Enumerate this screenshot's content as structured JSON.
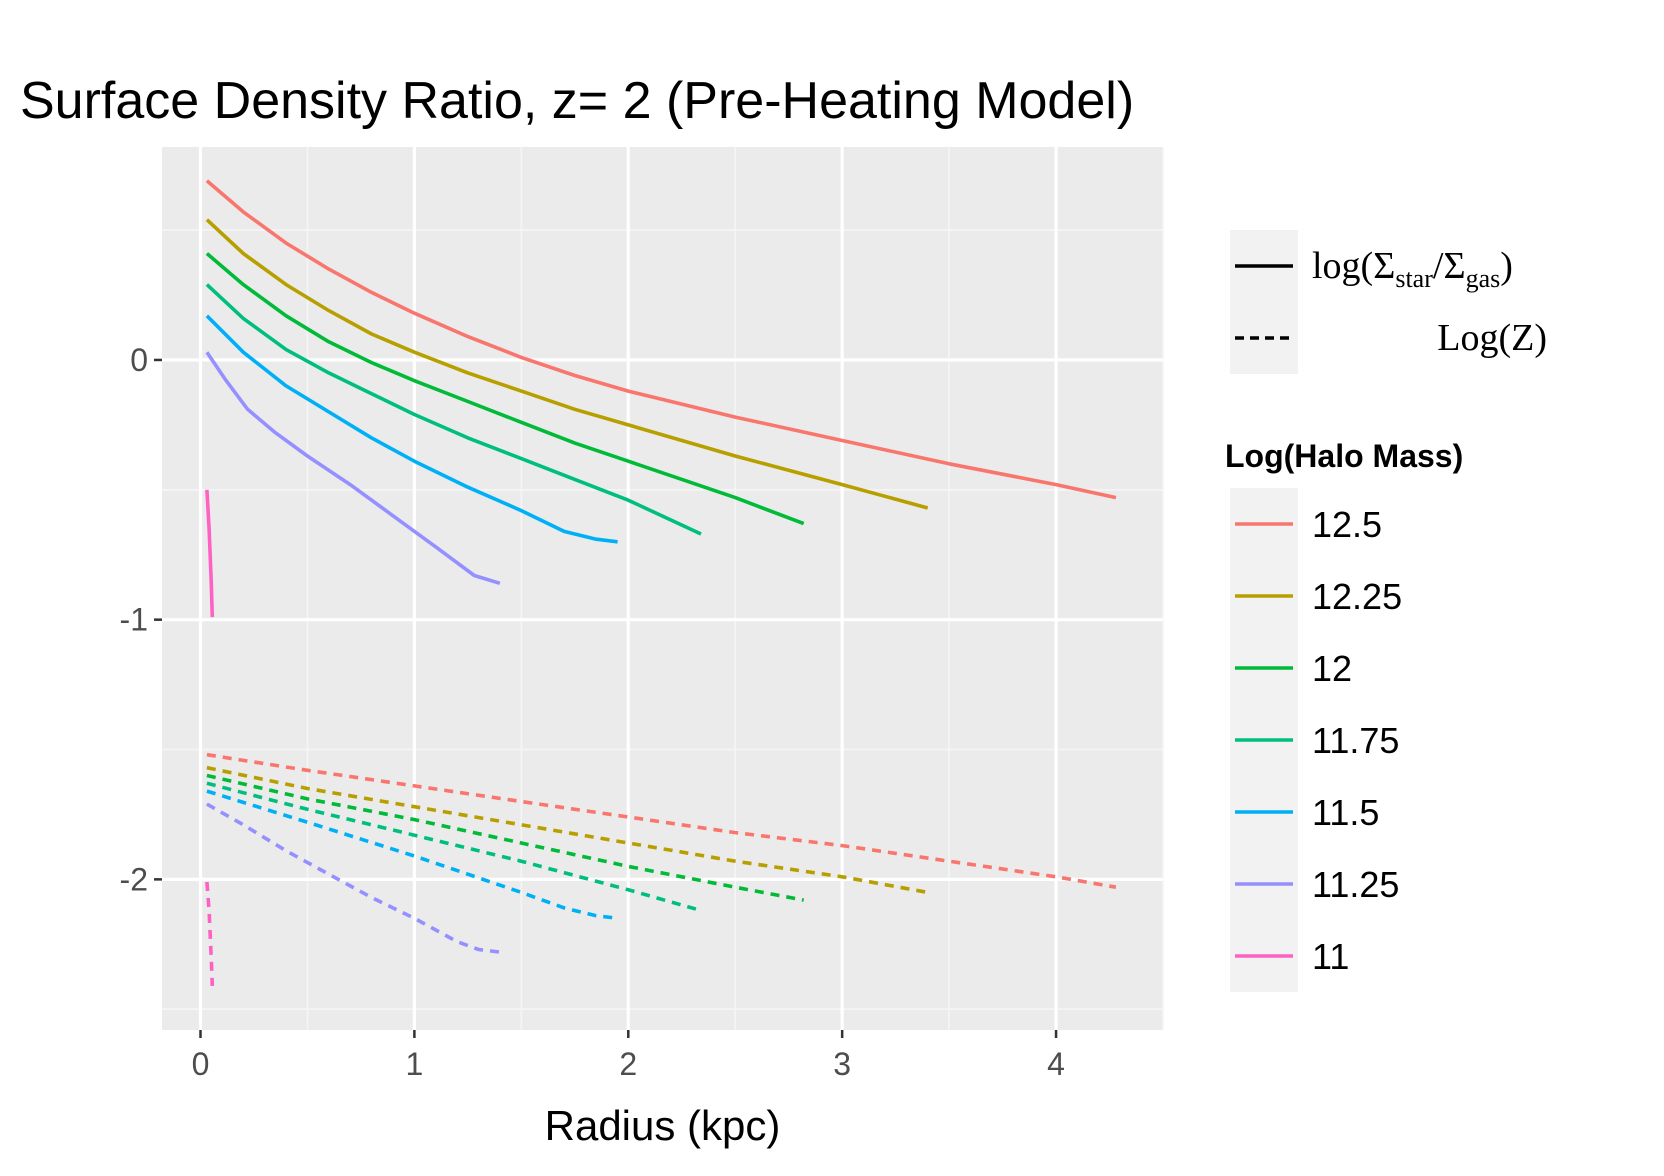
{
  "chart_data": {
    "type": "line",
    "title": "Surface Density Ratio, z= 2 (Pre-Heating Model)",
    "xlabel": "Radius (kpc)",
    "ylabel": "",
    "xlim": [
      -0.18,
      4.5
    ],
    "ylim": [
      -2.58,
      0.82
    ],
    "x_ticks": [
      0,
      1,
      2,
      3,
      4
    ],
    "x_tick_labels": [
      "0",
      "1",
      "2",
      "3",
      "4"
    ],
    "y_ticks": [
      0,
      -1,
      -2
    ],
    "y_tick_labels": [
      "0",
      "-1",
      "-2"
    ],
    "grid": true,
    "legend_position": "right",
    "linetype_legend": {
      "items": [
        {
          "style": "solid",
          "label": "log(Σstar/Σgas)",
          "parts": {
            "open": "log(Σ",
            "sub1": "star",
            "mid": "/Σ",
            "sub2": "gas",
            "close": ")"
          }
        },
        {
          "style": "dashed",
          "label": "Log(Z)"
        }
      ]
    },
    "legend_title": "Log(Halo Mass)",
    "series": [
      {
        "name": "12.5",
        "color": "#F8766D",
        "ratio": {
          "x": [
            0.03,
            0.2,
            0.4,
            0.6,
            0.8,
            1.0,
            1.25,
            1.5,
            1.75,
            2.0,
            2.5,
            3.0,
            3.5,
            4.0,
            4.28
          ],
          "y": [
            0.69,
            0.57,
            0.45,
            0.35,
            0.26,
            0.18,
            0.09,
            0.01,
            -0.06,
            -0.12,
            -0.22,
            -0.31,
            -0.4,
            -0.48,
            -0.53
          ]
        },
        "logz": {
          "x": [
            0.03,
            0.5,
            1.0,
            1.5,
            2.0,
            2.5,
            3.0,
            3.5,
            4.0,
            4.28
          ],
          "y": [
            -1.52,
            -1.58,
            -1.64,
            -1.7,
            -1.76,
            -1.82,
            -1.87,
            -1.93,
            -1.99,
            -2.03
          ]
        }
      },
      {
        "name": "12.25",
        "color": "#B79F00",
        "ratio": {
          "x": [
            0.03,
            0.2,
            0.4,
            0.6,
            0.8,
            1.0,
            1.25,
            1.5,
            1.75,
            2.0,
            2.5,
            3.0,
            3.4
          ],
          "y": [
            0.54,
            0.41,
            0.29,
            0.19,
            0.1,
            0.03,
            -0.05,
            -0.12,
            -0.19,
            -0.25,
            -0.37,
            -0.48,
            -0.57
          ]
        },
        "logz": {
          "x": [
            0.03,
            0.5,
            1.0,
            1.5,
            2.0,
            2.5,
            3.0,
            3.4
          ],
          "y": [
            -1.57,
            -1.65,
            -1.72,
            -1.79,
            -1.86,
            -1.93,
            -1.99,
            -2.05
          ]
        }
      },
      {
        "name": "12",
        "color": "#00BA38",
        "ratio": {
          "x": [
            0.03,
            0.2,
            0.4,
            0.6,
            0.8,
            1.0,
            1.25,
            1.5,
            1.75,
            2.0,
            2.5,
            2.82
          ],
          "y": [
            0.41,
            0.29,
            0.17,
            0.07,
            -0.01,
            -0.08,
            -0.16,
            -0.24,
            -0.32,
            -0.39,
            -0.53,
            -0.63
          ]
        },
        "logz": {
          "x": [
            0.03,
            0.5,
            1.0,
            1.5,
            2.0,
            2.5,
            2.82
          ],
          "y": [
            -1.6,
            -1.69,
            -1.77,
            -1.86,
            -1.95,
            -2.03,
            -2.08
          ]
        }
      },
      {
        "name": "11.75",
        "color": "#00BF7D",
        "ratio": {
          "x": [
            0.03,
            0.2,
            0.4,
            0.6,
            0.8,
            1.0,
            1.25,
            1.5,
            1.75,
            2.0,
            2.34
          ],
          "y": [
            0.29,
            0.16,
            0.04,
            -0.05,
            -0.13,
            -0.21,
            -0.3,
            -0.38,
            -0.46,
            -0.54,
            -0.67
          ]
        },
        "logz": {
          "x": [
            0.03,
            0.5,
            1.0,
            1.5,
            2.0,
            2.34
          ],
          "y": [
            -1.63,
            -1.73,
            -1.83,
            -1.93,
            -2.04,
            -2.12
          ]
        }
      },
      {
        "name": "11.5",
        "color": "#00B0F6",
        "ratio": {
          "x": [
            0.03,
            0.2,
            0.4,
            0.6,
            0.8,
            1.0,
            1.25,
            1.5,
            1.7,
            1.85,
            1.95
          ],
          "y": [
            0.17,
            0.03,
            -0.1,
            -0.2,
            -0.3,
            -0.39,
            -0.49,
            -0.58,
            -0.66,
            -0.69,
            -0.7
          ]
        },
        "logz": {
          "x": [
            0.03,
            0.5,
            1.0,
            1.5,
            1.7,
            1.85,
            1.95
          ],
          "y": [
            -1.66,
            -1.78,
            -1.91,
            -2.05,
            -2.11,
            -2.14,
            -2.15
          ]
        }
      },
      {
        "name": "11.25",
        "color": "#9590FF",
        "ratio": {
          "x": [
            0.03,
            0.12,
            0.22,
            0.35,
            0.5,
            0.7,
            0.9,
            1.1,
            1.28,
            1.4
          ],
          "y": [
            0.03,
            -0.08,
            -0.19,
            -0.28,
            -0.37,
            -0.48,
            -0.6,
            -0.72,
            -0.83,
            -0.86
          ]
        },
        "logz": {
          "x": [
            0.03,
            0.2,
            0.4,
            0.6,
            0.8,
            1.0,
            1.2,
            1.3,
            1.4
          ],
          "y": [
            -1.71,
            -1.79,
            -1.89,
            -1.98,
            -2.07,
            -2.15,
            -2.24,
            -2.27,
            -2.28
          ]
        }
      },
      {
        "name": "11",
        "color": "#FF61C3",
        "ratio": {
          "x": [
            0.03,
            0.04,
            0.05,
            0.055
          ],
          "y": [
            -0.5,
            -0.65,
            -0.85,
            -0.99
          ]
        },
        "logz": {
          "x": [
            0.03,
            0.04,
            0.05,
            0.055
          ],
          "y": [
            -2.01,
            -2.12,
            -2.3,
            -2.41
          ]
        }
      }
    ]
  }
}
